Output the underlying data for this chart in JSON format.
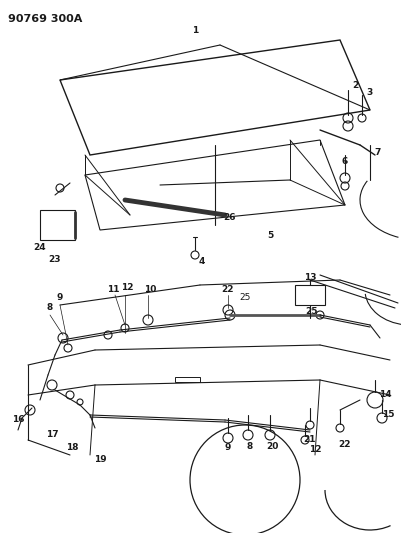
{
  "title": "90769 300A",
  "bg_color": "#ffffff",
  "line_color": "#1a1a1a",
  "fig_width": 4.02,
  "fig_height": 5.33,
  "dpi": 100
}
